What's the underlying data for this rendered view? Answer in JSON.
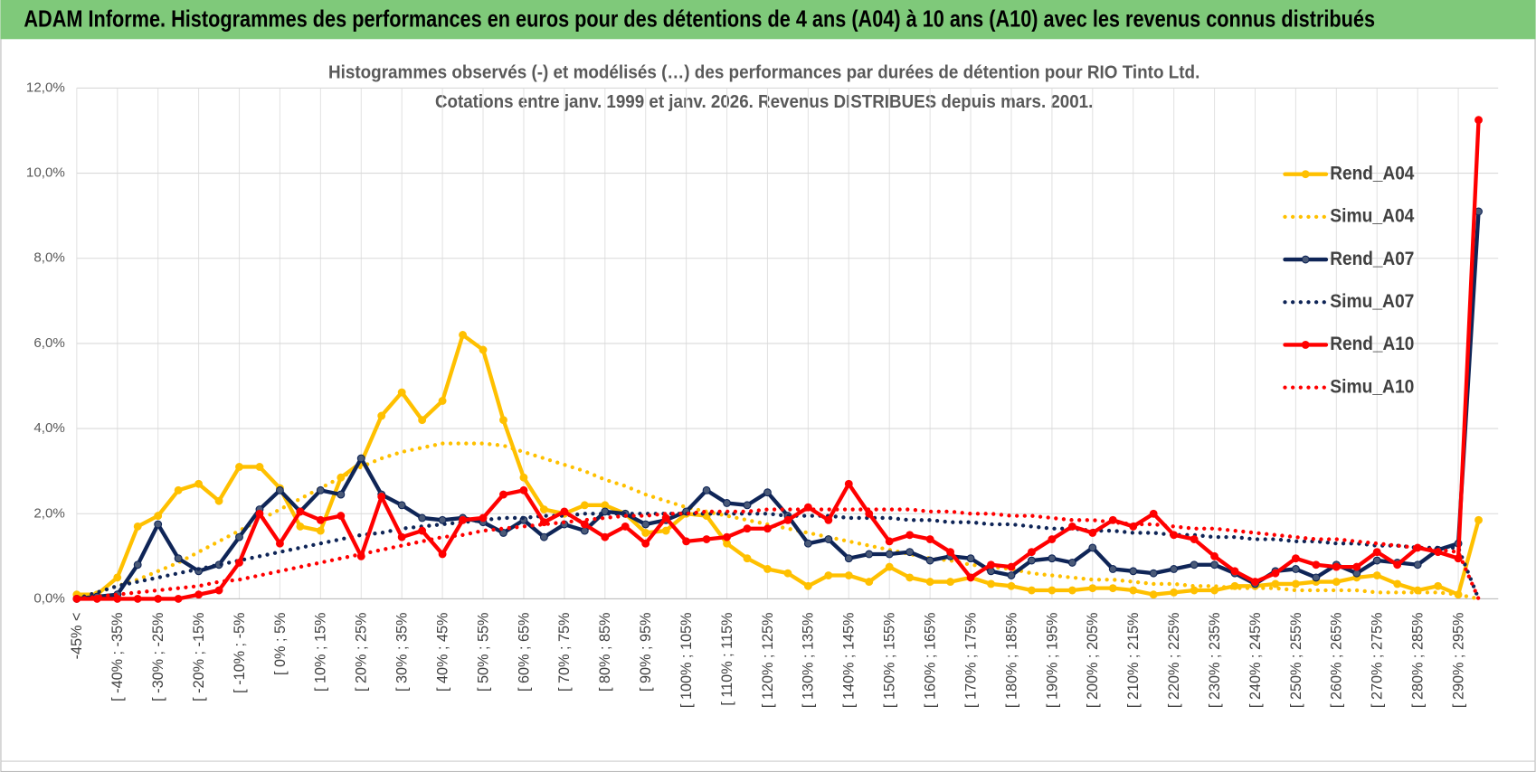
{
  "header": {
    "title": "ADAM Informe. Histogrammes des performances en euros pour des détentions de 4 ans (A04) à 10 ans (A10) avec les revenus connus distribués"
  },
  "chart_data": {
    "type": "line",
    "title": "Histogrammes observés (-) et modélisés (…) des performances par durées de détention pour RIO Tinto Ltd.",
    "subtitle": "Cotations entre janv. 1999 et janv. 2026. Revenus DISTRIBUES depuis mars. 2001.",
    "categories": [
      "-45% <",
      null,
      "[ -40% ; -35%",
      null,
      "[ -30% ; -25%",
      null,
      "[ -20% ; -15%",
      null,
      "[ -10% ; -5%",
      null,
      "[ 0% ; 5%",
      null,
      "[ 10% ; 15%",
      null,
      "[ 20% ; 25%",
      null,
      "[ 30% ; 35%",
      null,
      "[ 40% ; 45%",
      null,
      "[ 50% ; 55%",
      null,
      "[ 60% ; 65%",
      null,
      "[ 70% ; 75%",
      null,
      "[ 80% ; 85%",
      null,
      "[ 90% ; 95%",
      null,
      "[ 100% ; 105%",
      null,
      "[ 110% ; 115%",
      null,
      "[ 120% ; 125%",
      null,
      "[ 130% ; 135%",
      null,
      "[ 140% ; 145%",
      null,
      "[ 150% ; 155%",
      null,
      "[ 160% ; 165%",
      null,
      "[ 170% ; 175%",
      null,
      "[ 180% ; 185%",
      null,
      "[ 190% ; 195%",
      null,
      "[ 200% ; 205%",
      null,
      "[ 210% ; 215%",
      null,
      "[ 220% ; 225%",
      null,
      "[ 230% ; 235%",
      null,
      "[ 240% ; 245%",
      null,
      "[ 250% ; 255%",
      null,
      "[ 260% ; 265%",
      null,
      "[ 270% ; 275%",
      null,
      "[ 280% ; 285%",
      null,
      "[ 290% ; 295%",
      null
    ],
    "series": [
      {
        "name": "Rend_A04",
        "color": "#ffc000",
        "style": "solid",
        "markers": true,
        "values": [
          0.1,
          0.1,
          0.5,
          1.7,
          1.95,
          2.55,
          2.7,
          2.3,
          3.1,
          3.1,
          2.6,
          1.7,
          1.6,
          2.85,
          3.2,
          4.3,
          4.85,
          4.2,
          4.65,
          6.2,
          5.85,
          4.2,
          2.85,
          2.1,
          2.0,
          2.2,
          2.2,
          2.0,
          1.55,
          1.6,
          2.0,
          1.95,
          1.3,
          0.95,
          0.7,
          0.6,
          0.3,
          0.55,
          0.55,
          0.4,
          0.75,
          0.5,
          0.4,
          0.4,
          0.5,
          0.35,
          0.3,
          0.2,
          0.2,
          0.2,
          0.25,
          0.25,
          0.2,
          0.1,
          0.15,
          0.2,
          0.2,
          0.3,
          0.3,
          0.35,
          0.35,
          0.4,
          0.4,
          0.5,
          0.55,
          0.35,
          0.2,
          0.3,
          0.1,
          1.85
        ]
      },
      {
        "name": "Simu_A04",
        "color": "#ffc000",
        "style": "dotted",
        "markers": false,
        "values": [
          0,
          0.15,
          0.3,
          0.45,
          0.65,
          0.85,
          1.1,
          1.35,
          1.6,
          1.85,
          2.1,
          2.35,
          2.6,
          2.85,
          3.1,
          3.3,
          3.45,
          3.55,
          3.65,
          3.65,
          3.65,
          3.6,
          3.45,
          3.3,
          3.15,
          3.0,
          2.8,
          2.65,
          2.45,
          2.3,
          2.15,
          2.05,
          1.95,
          1.85,
          1.75,
          1.65,
          1.55,
          1.45,
          1.35,
          1.25,
          1.15,
          1.05,
          0.95,
          0.9,
          0.8,
          0.75,
          0.7,
          0.6,
          0.55,
          0.5,
          0.45,
          0.45,
          0.4,
          0.35,
          0.35,
          0.3,
          0.3,
          0.25,
          0.25,
          0.25,
          0.2,
          0.2,
          0.2,
          0.2,
          0.15,
          0.15,
          0.15,
          0.15,
          0.1,
          0
        ]
      },
      {
        "name": "Rend_A07",
        "color": "#0f2557",
        "style": "solid",
        "markers": true,
        "values": [
          0,
          0.05,
          0.1,
          0.8,
          1.75,
          0.95,
          0.65,
          0.8,
          1.45,
          2.1,
          2.55,
          2.05,
          2.55,
          2.45,
          3.3,
          2.45,
          2.2,
          1.9,
          1.85,
          1.9,
          1.8,
          1.55,
          1.85,
          1.45,
          1.75,
          1.6,
          2.05,
          2.0,
          1.75,
          1.85,
          2.05,
          2.55,
          2.25,
          2.2,
          2.5,
          1.95,
          1.3,
          1.4,
          0.95,
          1.05,
          1.05,
          1.1,
          0.9,
          1.0,
          0.95,
          0.65,
          0.55,
          0.9,
          0.95,
          0.85,
          1.2,
          0.7,
          0.65,
          0.6,
          0.7,
          0.8,
          0.8,
          0.6,
          0.35,
          0.65,
          0.7,
          0.5,
          0.8,
          0.6,
          0.9,
          0.85,
          0.8,
          1.15,
          1.3,
          9.1
        ]
      },
      {
        "name": "Simu_A07",
        "color": "#0f2557",
        "style": "dotted",
        "markers": false,
        "values": [
          0,
          0.15,
          0.3,
          0.4,
          0.5,
          0.6,
          0.7,
          0.8,
          0.9,
          1.0,
          1.1,
          1.2,
          1.3,
          1.4,
          1.5,
          1.55,
          1.65,
          1.7,
          1.75,
          1.8,
          1.85,
          1.9,
          1.9,
          1.95,
          1.95,
          2.0,
          2.0,
          2.0,
          2.0,
          2.0,
          2.0,
          2.0,
          2.0,
          2.0,
          2.0,
          1.95,
          1.95,
          1.95,
          1.9,
          1.9,
          1.9,
          1.85,
          1.85,
          1.8,
          1.8,
          1.75,
          1.75,
          1.7,
          1.65,
          1.65,
          1.6,
          1.6,
          1.55,
          1.55,
          1.5,
          1.5,
          1.45,
          1.45,
          1.4,
          1.4,
          1.35,
          1.35,
          1.3,
          1.3,
          1.25,
          1.25,
          1.2,
          1.2,
          1.2,
          0
        ]
      },
      {
        "name": "Rend_A10",
        "color": "#ff0000",
        "style": "solid",
        "markers": true,
        "values": [
          0,
          0,
          0,
          0,
          0,
          0,
          0.1,
          0.2,
          0.85,
          2.0,
          1.3,
          2.05,
          1.85,
          1.95,
          1.0,
          2.4,
          1.45,
          1.6,
          1.05,
          1.85,
          1.9,
          2.45,
          2.55,
          1.8,
          2.05,
          1.75,
          1.45,
          1.7,
          1.3,
          1.9,
          1.35,
          1.4,
          1.45,
          1.65,
          1.65,
          1.85,
          2.15,
          1.85,
          2.7,
          2.0,
          1.35,
          1.5,
          1.4,
          1.1,
          0.5,
          0.8,
          0.75,
          1.1,
          1.4,
          1.7,
          1.55,
          1.85,
          1.7,
          2.0,
          1.5,
          1.4,
          1.0,
          0.65,
          0.4,
          0.6,
          0.95,
          0.8,
          0.75,
          0.75,
          1.1,
          0.8,
          1.2,
          1.1,
          0.95,
          11.25
        ]
      },
      {
        "name": "Simu_A10",
        "color": "#ff0000",
        "style": "dotted",
        "markers": false,
        "values": [
          0,
          0.05,
          0.1,
          0.15,
          0.2,
          0.25,
          0.3,
          0.4,
          0.45,
          0.55,
          0.65,
          0.75,
          0.85,
          0.95,
          1.05,
          1.15,
          1.25,
          1.35,
          1.45,
          1.5,
          1.6,
          1.65,
          1.7,
          1.75,
          1.8,
          1.85,
          1.9,
          1.95,
          1.95,
          2.0,
          2.0,
          2.05,
          2.05,
          2.05,
          2.1,
          2.1,
          2.1,
          2.1,
          2.1,
          2.1,
          2.1,
          2.1,
          2.05,
          2.05,
          2.0,
          2.0,
          1.95,
          1.95,
          1.9,
          1.85,
          1.85,
          1.8,
          1.75,
          1.75,
          1.7,
          1.65,
          1.65,
          1.6,
          1.55,
          1.5,
          1.45,
          1.4,
          1.4,
          1.35,
          1.3,
          1.25,
          1.2,
          1.15,
          1.1,
          0
        ]
      }
    ],
    "ylim": [
      0,
      12
    ],
    "yticks": [
      {
        "value": 0,
        "label": "0,0%"
      },
      {
        "value": 2,
        "label": "2,0%"
      },
      {
        "value": 4,
        "label": "4,0%"
      },
      {
        "value": 6,
        "label": "6,0%"
      },
      {
        "value": 8,
        "label": "8,0%"
      },
      {
        "value": 10,
        "label": "10,0%"
      },
      {
        "value": 12,
        "label": "12,0%"
      }
    ],
    "grid": true,
    "legend": "right"
  }
}
